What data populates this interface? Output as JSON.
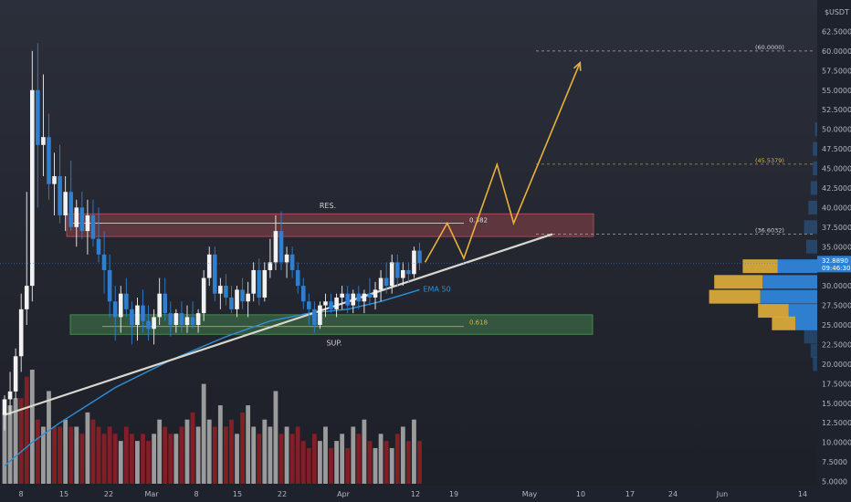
{
  "chart_data": {
    "type": "candlestick",
    "currency": "USDT",
    "ylim": [
      5,
      65
    ],
    "y_ticks": [
      "62.5000",
      "60.0000",
      "57.5000",
      "55.0000",
      "52.5000",
      "50.0000",
      "47.5000",
      "45.0000",
      "42.5000",
      "40.0000",
      "37.5000",
      "35.0000",
      "30.0000",
      "27.5000",
      "25.0000",
      "22.5000",
      "20.0000",
      "17.5000",
      "15.0000",
      "12.5000",
      "10.0000",
      "7.5000",
      "5.0000"
    ],
    "x_ticks": [
      "8",
      "15",
      "22",
      "Mar",
      "8",
      "15",
      "22",
      "Apr",
      "12",
      "19",
      "May",
      "10",
      "17",
      "24",
      "Jun",
      "14"
    ],
    "last_price": "32.8890",
    "countdown": "09:46:30",
    "candles": [
      {
        "o": 13.5,
        "h": 16,
        "l": 11.5,
        "c": 15.5
      },
      {
        "o": 15.5,
        "h": 19,
        "l": 13.5,
        "c": 16.5
      },
      {
        "o": 16.5,
        "h": 22,
        "l": 15.5,
        "c": 21
      },
      {
        "o": 21,
        "h": 29,
        "l": 19,
        "c": 27
      },
      {
        "o": 27,
        "h": 42,
        "l": 25,
        "c": 30
      },
      {
        "o": 30,
        "h": 60,
        "l": 28,
        "c": 55
      },
      {
        "o": 55,
        "h": 61,
        "l": 40,
        "c": 48
      },
      {
        "o": 48,
        "h": 57,
        "l": 44,
        "c": 49
      },
      {
        "o": 49,
        "h": 52,
        "l": 41,
        "c": 43
      },
      {
        "o": 43,
        "h": 47,
        "l": 39,
        "c": 44
      },
      {
        "o": 44,
        "h": 48,
        "l": 38,
        "c": 39
      },
      {
        "o": 39,
        "h": 44,
        "l": 37,
        "c": 42
      },
      {
        "o": 42,
        "h": 46,
        "l": 37,
        "c": 37.5
      },
      {
        "o": 37.5,
        "h": 41,
        "l": 35,
        "c": 40
      },
      {
        "o": 40,
        "h": 42,
        "l": 36,
        "c": 37
      },
      {
        "o": 37,
        "h": 41,
        "l": 34,
        "c": 39
      },
      {
        "o": 39,
        "h": 41,
        "l": 35,
        "c": 36
      },
      {
        "o": 36,
        "h": 40,
        "l": 33,
        "c": 34
      },
      {
        "o": 34,
        "h": 37,
        "l": 29,
        "c": 32
      },
      {
        "o": 32,
        "h": 34,
        "l": 26,
        "c": 28
      },
      {
        "o": 28,
        "h": 30,
        "l": 23,
        "c": 26
      },
      {
        "o": 26,
        "h": 30,
        "l": 24,
        "c": 29
      },
      {
        "o": 29,
        "h": 31,
        "l": 26,
        "c": 27
      },
      {
        "o": 27,
        "h": 28,
        "l": 22.5,
        "c": 25
      },
      {
        "o": 25,
        "h": 28.5,
        "l": 23,
        "c": 27.5
      },
      {
        "o": 27.5,
        "h": 29.5,
        "l": 24,
        "c": 25.5
      },
      {
        "o": 25.5,
        "h": 27.5,
        "l": 23,
        "c": 24.5
      },
      {
        "o": 24.5,
        "h": 27,
        "l": 22.5,
        "c": 26
      },
      {
        "o": 26,
        "h": 31,
        "l": 25,
        "c": 29
      },
      {
        "o": 29,
        "h": 31,
        "l": 25.5,
        "c": 26.5
      },
      {
        "o": 26.5,
        "h": 28,
        "l": 23.5,
        "c": 25
      },
      {
        "o": 25,
        "h": 27,
        "l": 24,
        "c": 26.5
      },
      {
        "o": 26.5,
        "h": 28,
        "l": 24,
        "c": 25
      },
      {
        "o": 25,
        "h": 27.5,
        "l": 24,
        "c": 26
      },
      {
        "o": 26,
        "h": 28,
        "l": 24.5,
        "c": 25
      },
      {
        "o": 25,
        "h": 27,
        "l": 24,
        "c": 26.5
      },
      {
        "o": 26.5,
        "h": 32,
        "l": 25.5,
        "c": 31
      },
      {
        "o": 31,
        "h": 35,
        "l": 30,
        "c": 34
      },
      {
        "o": 34,
        "h": 35,
        "l": 28,
        "c": 29
      },
      {
        "o": 29,
        "h": 31,
        "l": 27,
        "c": 30
      },
      {
        "o": 30,
        "h": 31.5,
        "l": 27.5,
        "c": 28.5
      },
      {
        "o": 28.5,
        "h": 30,
        "l": 26.5,
        "c": 27
      },
      {
        "o": 27,
        "h": 30,
        "l": 26,
        "c": 29.5
      },
      {
        "o": 29.5,
        "h": 31,
        "l": 27,
        "c": 28
      },
      {
        "o": 28,
        "h": 30.5,
        "l": 26,
        "c": 29
      },
      {
        "o": 29,
        "h": 33,
        "l": 28,
        "c": 32
      },
      {
        "o": 32,
        "h": 33.5,
        "l": 27.5,
        "c": 28.5
      },
      {
        "o": 28.5,
        "h": 33,
        "l": 28,
        "c": 32
      },
      {
        "o": 32,
        "h": 36,
        "l": 31,
        "c": 33
      },
      {
        "o": 33,
        "h": 39,
        "l": 32,
        "c": 37
      },
      {
        "o": 37,
        "h": 39.5,
        "l": 32,
        "c": 33
      },
      {
        "o": 33,
        "h": 35,
        "l": 31,
        "c": 34
      },
      {
        "o": 34,
        "h": 35,
        "l": 31,
        "c": 32
      },
      {
        "o": 32,
        "h": 33,
        "l": 29,
        "c": 30
      },
      {
        "o": 30,
        "h": 31,
        "l": 27,
        "c": 28
      },
      {
        "o": 28,
        "h": 29,
        "l": 25,
        "c": 27
      },
      {
        "o": 27,
        "h": 28,
        "l": 24,
        "c": 25
      },
      {
        "o": 25,
        "h": 28,
        "l": 24.5,
        "c": 27.5
      },
      {
        "o": 27.5,
        "h": 29,
        "l": 26,
        "c": 28
      },
      {
        "o": 28,
        "h": 29,
        "l": 26.5,
        "c": 27
      },
      {
        "o": 27,
        "h": 29,
        "l": 26,
        "c": 28.5
      },
      {
        "o": 28.5,
        "h": 30,
        "l": 27,
        "c": 29
      },
      {
        "o": 29,
        "h": 30,
        "l": 26.5,
        "c": 27.5
      },
      {
        "o": 27.5,
        "h": 29.5,
        "l": 26.5,
        "c": 29
      },
      {
        "o": 29,
        "h": 30,
        "l": 27,
        "c": 28
      },
      {
        "o": 28,
        "h": 29.5,
        "l": 26.5,
        "c": 29
      },
      {
        "o": 29,
        "h": 31,
        "l": 27.5,
        "c": 28.5
      },
      {
        "o": 28.5,
        "h": 30.5,
        "l": 27,
        "c": 29.5
      },
      {
        "o": 29.5,
        "h": 32,
        "l": 28,
        "c": 31
      },
      {
        "o": 31,
        "h": 33,
        "l": 29,
        "c": 30
      },
      {
        "o": 30,
        "h": 34,
        "l": 29,
        "c": 33
      },
      {
        "o": 33,
        "h": 34,
        "l": 30,
        "c": 31
      },
      {
        "o": 31,
        "h": 33,
        "l": 30,
        "c": 32
      },
      {
        "o": 32,
        "h": 33,
        "l": 30.5,
        "c": 31.5
      },
      {
        "o": 31.5,
        "h": 35,
        "l": 31,
        "c": 34.5
      },
      {
        "o": 34.5,
        "h": 35.5,
        "l": 32,
        "c": 32.9
      }
    ],
    "volumes": [
      10,
      11,
      12,
      12,
      15,
      16,
      9,
      8,
      13,
      8,
      8,
      9,
      8,
      8,
      7,
      10,
      9,
      8,
      7,
      8,
      7,
      6,
      8,
      7,
      6,
      7,
      6,
      7,
      9,
      8,
      7,
      7,
      8,
      9,
      10,
      8,
      14,
      9,
      8,
      11,
      8,
      9,
      7,
      10,
      11,
      8,
      7,
      9,
      8,
      13,
      7,
      8,
      7,
      8,
      6,
      5,
      7,
      6,
      8,
      5,
      6,
      7,
      5,
      8,
      7,
      9,
      6,
      5,
      7,
      6,
      5,
      7,
      8,
      6,
      9,
      6
    ],
    "volume_colors": [
      "g",
      "g",
      "g",
      "r",
      "r",
      "g",
      "r",
      "g",
      "g",
      "r",
      "r",
      "g",
      "r",
      "g",
      "r",
      "g",
      "r",
      "r",
      "r",
      "r",
      "r",
      "g",
      "r",
      "r",
      "g",
      "r",
      "r",
      "g",
      "g",
      "r",
      "r",
      "g",
      "r",
      "g",
      "r",
      "g",
      "g",
      "g",
      "r",
      "g",
      "r",
      "r",
      "g",
      "r",
      "g",
      "g",
      "r",
      "g",
      "g",
      "g",
      "r",
      "g",
      "r",
      "r",
      "r",
      "r",
      "r",
      "g",
      "g",
      "r",
      "g",
      "g",
      "r",
      "g",
      "r",
      "g",
      "r",
      "g",
      "g",
      "r",
      "g",
      "r",
      "g",
      "r",
      "g",
      "r"
    ],
    "ema50_label": "EMA 50",
    "ema50": [
      [
        0,
        7
      ],
      [
        5,
        10
      ],
      [
        10,
        12.5
      ],
      [
        20,
        17
      ],
      [
        30,
        20.5
      ],
      [
        40,
        23.5
      ],
      [
        48,
        25.5
      ],
      [
        55,
        26.5
      ],
      [
        62,
        27
      ],
      [
        68,
        28
      ],
      [
        75,
        29.5
      ]
    ],
    "resistance_zone": {
      "label": "RES.",
      "top": 39.2,
      "bottom": 36.3,
      "fib_label": "0.382",
      "fib_value": 38
    },
    "support_zone": {
      "label": "SUP.",
      "top": 26.3,
      "bottom": 23.8,
      "fib_label": "0.618",
      "fib_value": 24.8
    },
    "trendline": {
      "from": [
        0,
        13.5
      ],
      "to": [
        99,
        36.6
      ]
    },
    "targets": [
      "(60.0000)",
      "(45.5379)",
      "(36.6032)"
    ],
    "target_values": [
      60.0,
      45.5379,
      36.6032
    ],
    "projection": [
      [
        76,
        33
      ],
      [
        80,
        38
      ],
      [
        83,
        33.5
      ],
      [
        89,
        45.5
      ],
      [
        92,
        38
      ],
      [
        104,
        58.5
      ]
    ],
    "volume_profile": [
      {
        "price": 37.5,
        "buy": 0,
        "sell": 6
      },
      {
        "price": 40,
        "buy": 0,
        "sell": 4
      },
      {
        "price": 42.5,
        "buy": 0,
        "sell": 3
      },
      {
        "price": 45,
        "buy": 0,
        "sell": 2
      },
      {
        "price": 47.5,
        "buy": 0,
        "sell": 2
      },
      {
        "price": 50,
        "buy": 0,
        "sell": 1
      },
      {
        "price": 35,
        "buy": 0,
        "sell": 5
      },
      {
        "price": 32.5,
        "buy": 24,
        "sell": 18
      },
      {
        "price": 30.5,
        "buy": 33,
        "sell": 25
      },
      {
        "price": 28.6,
        "buy": 35,
        "sell": 26
      },
      {
        "price": 26.8,
        "buy": 21,
        "sell": 13
      },
      {
        "price": 25.2,
        "buy": 16,
        "sell": 10
      },
      {
        "price": 23.5,
        "buy": 0,
        "sell": 6
      },
      {
        "price": 21.7,
        "buy": 0,
        "sell": 3
      },
      {
        "price": 20,
        "buy": 0,
        "sell": 2
      }
    ]
  }
}
